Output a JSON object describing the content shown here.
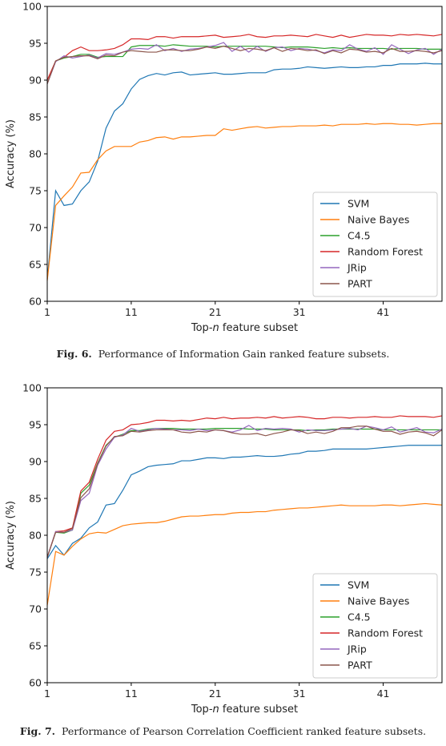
{
  "figures": [
    {
      "caption_label": "Fig. 6.",
      "caption_text": "Performance of Information Gain ranked feature subsets."
    },
    {
      "caption_label": "Fig. 7.",
      "caption_text": "Performance of Pearson Correlation Coefficient ranked feature subsets."
    }
  ],
  "chart_data": [
    {
      "type": "line",
      "title": "",
      "xlabel": "Top-n feature subset",
      "ylabel": "Accuracy (%)",
      "xlim": [
        1,
        48
      ],
      "ylim": [
        60,
        100
      ],
      "xticks": [
        1,
        11,
        21,
        31,
        41
      ],
      "yticks": [
        60,
        65,
        70,
        75,
        80,
        85,
        90,
        95,
        100
      ],
      "grid": false,
      "legend_position": "lower-right",
      "x": [
        1,
        2,
        3,
        4,
        5,
        6,
        7,
        8,
        9,
        10,
        11,
        12,
        13,
        14,
        15,
        16,
        17,
        18,
        19,
        20,
        21,
        22,
        23,
        24,
        25,
        26,
        27,
        28,
        29,
        30,
        31,
        32,
        33,
        34,
        35,
        36,
        37,
        38,
        39,
        40,
        41,
        42,
        43,
        44,
        45,
        46,
        47,
        48
      ],
      "series": [
        {
          "name": "SVM",
          "color": "#1f77b4",
          "values": [
            63.0,
            75.0,
            73.0,
            73.2,
            75.0,
            76.2,
            79.0,
            83.5,
            85.8,
            86.8,
            88.8,
            90.1,
            90.6,
            90.9,
            90.7,
            91.0,
            91.1,
            90.7,
            90.8,
            90.9,
            91.0,
            90.8,
            90.8,
            90.9,
            91.0,
            91.0,
            91.0,
            91.4,
            91.5,
            91.5,
            91.6,
            91.8,
            91.7,
            91.6,
            91.7,
            91.8,
            91.7,
            91.7,
            91.8,
            91.8,
            92.0,
            92.0,
            92.2,
            92.2,
            92.2,
            92.3,
            92.2,
            92.2
          ]
        },
        {
          "name": "Naive Bayes",
          "color": "#ff7f0e",
          "values": [
            62.8,
            73.0,
            74.3,
            75.5,
            77.4,
            77.5,
            79.2,
            80.4,
            81.0,
            81.0,
            81.0,
            81.6,
            81.8,
            82.2,
            82.3,
            82.0,
            82.3,
            82.3,
            82.4,
            82.5,
            82.5,
            83.4,
            83.2,
            83.4,
            83.6,
            83.7,
            83.5,
            83.6,
            83.7,
            83.7,
            83.8,
            83.8,
            83.8,
            83.9,
            83.8,
            84.0,
            84.0,
            84.0,
            84.1,
            84.0,
            84.1,
            84.1,
            84.0,
            84.0,
            83.9,
            84.0,
            84.1,
            84.1
          ]
        },
        {
          "name": "C4.5",
          "color": "#2ca02c",
          "values": [
            89.5,
            92.6,
            93.0,
            93.2,
            93.5,
            93.5,
            93.1,
            93.2,
            93.2,
            93.2,
            94.5,
            94.7,
            94.7,
            94.7,
            94.6,
            94.8,
            94.7,
            94.6,
            94.6,
            94.6,
            94.5,
            94.6,
            94.6,
            94.6,
            94.6,
            94.6,
            94.6,
            94.5,
            94.4,
            94.5,
            94.5,
            94.5,
            94.4,
            94.3,
            94.4,
            94.3,
            94.4,
            94.3,
            94.3,
            94.3,
            94.3,
            94.2,
            94.3,
            94.3,
            94.3,
            94.2,
            94.2,
            94.2
          ]
        },
        {
          "name": "Random Forest",
          "color": "#d62728",
          "values": [
            90.0,
            92.6,
            93.1,
            94.0,
            94.5,
            94.0,
            94.0,
            94.1,
            94.3,
            94.8,
            95.6,
            95.6,
            95.5,
            95.9,
            95.9,
            95.7,
            95.9,
            95.9,
            95.9,
            96.0,
            96.1,
            95.8,
            95.9,
            96.0,
            96.2,
            95.9,
            95.8,
            96.0,
            96.0,
            96.1,
            96.0,
            95.9,
            96.2,
            96.0,
            95.8,
            96.1,
            95.8,
            96.0,
            96.2,
            96.1,
            96.1,
            96.0,
            96.2,
            96.1,
            96.2,
            96.1,
            96.0,
            96.2
          ]
        },
        {
          "name": "JRip",
          "color": "#9467bd",
          "values": [
            89.5,
            92.5,
            93.3,
            93.0,
            93.2,
            93.4,
            93.0,
            93.6,
            93.5,
            93.8,
            94.2,
            94.3,
            94.2,
            94.8,
            94.0,
            94.3,
            93.9,
            94.2,
            94.3,
            94.5,
            94.7,
            95.1,
            93.9,
            94.6,
            93.8,
            94.6,
            93.9,
            94.4,
            94.5,
            94.0,
            94.3,
            94.2,
            94.0,
            93.7,
            94.1,
            94.0,
            94.8,
            94.2,
            93.9,
            94.4,
            93.5,
            94.8,
            94.2,
            93.6,
            94.1,
            94.3,
            93.5,
            94.2
          ]
        },
        {
          "name": "PART",
          "color": "#8c564b",
          "values": [
            89.5,
            92.6,
            93.1,
            93.2,
            93.3,
            93.3,
            92.9,
            93.4,
            93.3,
            93.8,
            94.0,
            93.9,
            93.8,
            93.8,
            94.1,
            94.1,
            94.0,
            94.0,
            94.2,
            94.5,
            94.3,
            94.6,
            94.3,
            94.0,
            94.3,
            94.2,
            94.0,
            94.4,
            93.9,
            94.3,
            94.2,
            94.0,
            94.1,
            93.6,
            94.0,
            93.7,
            94.2,
            94.1,
            93.8,
            93.9,
            93.7,
            94.3,
            93.9,
            93.9,
            94.0,
            93.9,
            93.7,
            94.0
          ]
        }
      ]
    },
    {
      "type": "line",
      "title": "",
      "xlabel": "Top-n feature subset",
      "ylabel": "Accuracy (%)",
      "xlim": [
        1,
        48
      ],
      "ylim": [
        60,
        100
      ],
      "xticks": [
        1,
        11,
        21,
        31,
        41
      ],
      "yticks": [
        60,
        65,
        70,
        75,
        80,
        85,
        90,
        95,
        100
      ],
      "grid": false,
      "legend_position": "lower-right",
      "x": [
        1,
        2,
        3,
        4,
        5,
        6,
        7,
        8,
        9,
        10,
        11,
        12,
        13,
        14,
        15,
        16,
        17,
        18,
        19,
        20,
        21,
        22,
        23,
        24,
        25,
        26,
        27,
        28,
        29,
        30,
        31,
        32,
        33,
        34,
        35,
        36,
        37,
        38,
        39,
        40,
        41,
        42,
        43,
        44,
        45,
        46,
        47,
        48
      ],
      "series": [
        {
          "name": "SVM",
          "color": "#1f77b4",
          "values": [
            76.8,
            78.6,
            77.3,
            78.9,
            79.6,
            81.0,
            81.8,
            84.1,
            84.3,
            86.1,
            88.2,
            88.7,
            89.3,
            89.5,
            89.6,
            89.7,
            90.1,
            90.1,
            90.3,
            90.5,
            90.5,
            90.4,
            90.6,
            90.6,
            90.7,
            90.8,
            90.7,
            90.7,
            90.8,
            91.0,
            91.1,
            91.4,
            91.4,
            91.5,
            91.7,
            91.7,
            91.7,
            91.7,
            91.7,
            91.8,
            91.9,
            92.0,
            92.1,
            92.2,
            92.2,
            92.2,
            92.2,
            92.2
          ]
        },
        {
          "name": "Naive Bayes",
          "color": "#ff7f0e",
          "values": [
            70.5,
            77.8,
            77.3,
            78.5,
            79.5,
            80.2,
            80.4,
            80.3,
            80.8,
            81.3,
            81.5,
            81.6,
            81.7,
            81.7,
            81.9,
            82.2,
            82.5,
            82.6,
            82.6,
            82.7,
            82.8,
            82.8,
            83.0,
            83.1,
            83.1,
            83.2,
            83.2,
            83.4,
            83.5,
            83.6,
            83.7,
            83.7,
            83.8,
            83.9,
            84.0,
            84.1,
            84.0,
            84.0,
            84.0,
            84.0,
            84.1,
            84.1,
            84.0,
            84.1,
            84.2,
            84.3,
            84.2,
            84.1
          ]
        },
        {
          "name": "C4.5",
          "color": "#2ca02c",
          "values": [
            77.0,
            80.4,
            80.3,
            80.7,
            85.7,
            86.8,
            89.8,
            92.2,
            93.3,
            93.7,
            94.2,
            94.2,
            94.4,
            94.5,
            94.5,
            94.5,
            94.4,
            94.4,
            94.4,
            94.4,
            94.5,
            94.5,
            94.5,
            94.5,
            94.4,
            94.4,
            94.4,
            94.3,
            94.3,
            94.3,
            94.3,
            94.2,
            94.3,
            94.3,
            94.4,
            94.4,
            94.4,
            94.4,
            94.4,
            94.4,
            94.3,
            94.3,
            94.3,
            94.3,
            94.3,
            94.3,
            94.3,
            94.3
          ]
        },
        {
          "name": "Random Forest",
          "color": "#d62728",
          "values": [
            77.0,
            80.5,
            80.6,
            81.0,
            86.0,
            87.2,
            90.3,
            92.9,
            94.1,
            94.3,
            95.0,
            95.1,
            95.3,
            95.6,
            95.6,
            95.5,
            95.6,
            95.5,
            95.7,
            95.9,
            95.8,
            96.0,
            95.8,
            95.9,
            95.9,
            96.0,
            95.9,
            96.1,
            95.9,
            96.0,
            96.1,
            96.0,
            95.8,
            95.8,
            96.0,
            96.0,
            95.9,
            96.0,
            96.0,
            96.1,
            96.0,
            96.0,
            96.2,
            96.1,
            96.1,
            96.1,
            96.0,
            96.2
          ]
        },
        {
          "name": "JRip",
          "color": "#9467bd",
          "values": [
            77.0,
            80.5,
            80.4,
            80.7,
            84.7,
            85.7,
            89.5,
            91.7,
            93.3,
            93.6,
            94.5,
            94.1,
            94.3,
            94.5,
            94.4,
            94.3,
            94.3,
            94.2,
            94.4,
            94.2,
            94.3,
            94.2,
            94.0,
            94.3,
            94.9,
            94.2,
            94.5,
            94.4,
            94.5,
            94.4,
            94.0,
            94.3,
            94.2,
            94.2,
            94.3,
            94.4,
            94.5,
            94.3,
            94.8,
            94.6,
            94.3,
            94.7,
            94.0,
            94.3,
            94.6,
            94.0,
            93.9,
            94.4
          ]
        },
        {
          "name": "PART",
          "color": "#8c564b",
          "values": [
            77.0,
            80.4,
            80.4,
            80.9,
            85.1,
            86.3,
            89.7,
            92.1,
            93.4,
            93.5,
            94.1,
            94.0,
            94.2,
            94.3,
            94.3,
            94.3,
            94.0,
            93.9,
            94.1,
            94.0,
            94.3,
            94.2,
            93.9,
            93.7,
            93.7,
            93.8,
            93.5,
            93.8,
            94.0,
            94.3,
            94.2,
            93.8,
            94.0,
            93.8,
            94.1,
            94.6,
            94.6,
            94.8,
            94.8,
            94.4,
            94.1,
            94.1,
            93.7,
            94.0,
            94.1,
            93.9,
            93.5,
            94.3
          ]
        }
      ]
    }
  ]
}
